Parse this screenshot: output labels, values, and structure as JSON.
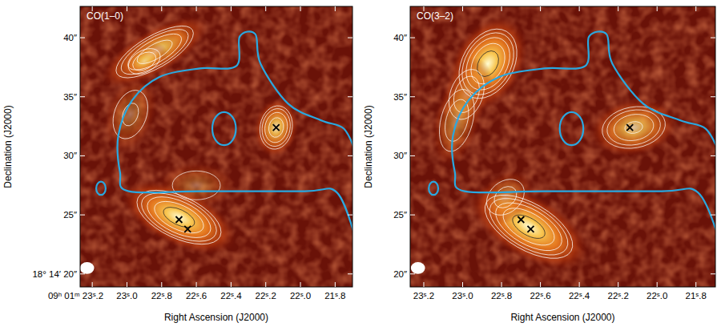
{
  "chart_data": [
    {
      "type": "image",
      "title": "CO(1–0)",
      "x_label": "Right Ascension (J2000)",
      "y_label": "Declination (J2000)",
      "xlim": [
        23.27,
        21.7
      ],
      "xticks": [
        {
          "value": 23.2,
          "label": "09ʰ 01ᵐ 23ˢ.2"
        },
        {
          "value": 23.0,
          "label": "23ˢ.0"
        },
        {
          "value": 22.8,
          "label": "22ˢ.8"
        },
        {
          "value": 22.6,
          "label": "22ˢ.6"
        },
        {
          "value": 22.4,
          "label": "22ˢ.4"
        },
        {
          "value": 22.2,
          "label": "22ˢ.2"
        },
        {
          "value": 22.0,
          "label": "22ˢ.0"
        },
        {
          "value": 21.8,
          "label": "21ˢ.8"
        }
      ],
      "ylim": [
        18.9,
        42.65
      ],
      "yticks": [
        {
          "value": 20,
          "label": "18° 14′ 20″"
        },
        {
          "value": 25,
          "label": "25″"
        },
        {
          "value": 30,
          "label": "30″"
        },
        {
          "value": 35,
          "label": "35″"
        },
        {
          "value": 40,
          "label": "40″"
        }
      ],
      "components": [
        {
          "ra": 22.84,
          "dec": 38.8,
          "major": 3.8,
          "minor": 1.4,
          "pa": 30,
          "peak": 0.85
        },
        {
          "ra": 22.9,
          "dec": 38.0,
          "major": 1.6,
          "minor": 1.0,
          "pa": 30,
          "peak": 0.5
        },
        {
          "ra": 22.14,
          "dec": 32.4,
          "major": 1.9,
          "minor": 1.4,
          "pa": 80,
          "peak": 0.85
        },
        {
          "ra": 22.7,
          "dec": 24.8,
          "major": 3.9,
          "minor": 1.8,
          "pa": -25,
          "peak": 1.0
        },
        {
          "ra": 22.98,
          "dec": 33.5,
          "major": 2.5,
          "minor": 1.6,
          "pa": 70,
          "peak": 0.35
        },
        {
          "ra": 22.6,
          "dec": 27.5,
          "major": 2.5,
          "minor": 1.5,
          "pa": 0,
          "peak": 0.3
        }
      ],
      "crosses": {
        "ra": [
          22.14,
          22.7,
          22.65
        ],
        "dec": [
          32.4,
          24.6,
          23.8
        ]
      },
      "blue_contour": {
        "ra": [
          21.677,
          21.79,
          21.98,
          22.58,
          22.99,
          23.04,
          23.05,
          22.97,
          22.81,
          22.58,
          22.37,
          22.35,
          22.26,
          22.23,
          22.07,
          21.88,
          21.75,
          21.68
        ],
        "dec": [
          22.84,
          26.9,
          27.0,
          27.0,
          27.0,
          28.6,
          31.7,
          34.7,
          36.7,
          37.4,
          37.6,
          40.1,
          40.3,
          37.8,
          34.4,
          33.0,
          32.3,
          30.3
        ]
      },
      "blue_islands": {
        "ra": [
          22.44,
          23.15
        ],
        "dec": [
          32.3,
          27.25
        ],
        "radius": [
          1.0,
          0.4
        ]
      },
      "beam": {
        "ra": 23.23,
        "dec": 20.5,
        "major": 0.6,
        "minor": 0.5
      }
    },
    {
      "type": "image",
      "title": "CO(3–2)",
      "x_label": "Right Ascension (J2000)",
      "y_label": "Declination (J2000)",
      "xlim": [
        23.27,
        21.7
      ],
      "xticks": [
        {
          "value": 23.2,
          "label": "23ˢ.2"
        },
        {
          "value": 23.0,
          "label": "23ˢ.0"
        },
        {
          "value": 22.8,
          "label": "22ˢ.8"
        },
        {
          "value": 22.6,
          "label": "22ˢ.6"
        },
        {
          "value": 22.4,
          "label": "22ˢ.4"
        },
        {
          "value": 22.2,
          "label": "22ˢ.2"
        },
        {
          "value": 22.0,
          "label": "22ˢ.0"
        },
        {
          "value": 21.8,
          "label": "21ˢ.8"
        }
      ],
      "ylim": [
        18.9,
        42.65
      ],
      "yticks": [
        {
          "value": 20,
          "label": "20″"
        },
        {
          "value": 25,
          "label": "25″"
        },
        {
          "value": 30,
          "label": "30″"
        },
        {
          "value": 35,
          "label": "35″"
        },
        {
          "value": 40,
          "label": "40″"
        }
      ],
      "components": [
        {
          "ra": 22.87,
          "dec": 37.8,
          "major": 3.2,
          "minor": 2.2,
          "pa": 60,
          "peak": 1.0
        },
        {
          "ra": 22.98,
          "dec": 35.2,
          "major": 2.4,
          "minor": 1.5,
          "pa": 70,
          "peak": 0.5
        },
        {
          "ra": 23.03,
          "dec": 33.0,
          "major": 3.0,
          "minor": 1.5,
          "pa": 75,
          "peak": 0.45
        },
        {
          "ra": 22.12,
          "dec": 32.4,
          "major": 2.8,
          "minor": 1.8,
          "pa": 10,
          "peak": 0.75
        },
        {
          "ra": 22.66,
          "dec": 24.0,
          "major": 4.2,
          "minor": 2.0,
          "pa": -30,
          "peak": 1.0
        },
        {
          "ra": 22.78,
          "dec": 26.5,
          "major": 2.0,
          "minor": 1.5,
          "pa": 40,
          "peak": 0.4
        }
      ],
      "crosses": {
        "ra": [
          22.14,
          22.7,
          22.65
        ],
        "dec": [
          32.4,
          24.6,
          23.8
        ]
      },
      "blue_contour": {
        "ra": [
          21.677,
          21.79,
          21.98,
          22.58,
          22.99,
          23.04,
          23.05,
          22.97,
          22.81,
          22.58,
          22.37,
          22.35,
          22.26,
          22.23,
          22.07,
          21.88,
          21.75,
          21.68
        ],
        "dec": [
          22.84,
          26.9,
          27.0,
          27.0,
          27.0,
          28.6,
          31.7,
          34.7,
          36.7,
          37.4,
          37.6,
          40.1,
          40.3,
          37.8,
          34.4,
          33.0,
          32.3,
          30.3
        ]
      },
      "blue_islands": {
        "ra": [
          22.44,
          23.15
        ],
        "dec": [
          32.3,
          27.25
        ],
        "radius": [
          1.0,
          0.4
        ]
      },
      "beam": {
        "ra": 23.23,
        "dec": 20.5,
        "major": 0.6,
        "minor": 0.5
      }
    }
  ]
}
